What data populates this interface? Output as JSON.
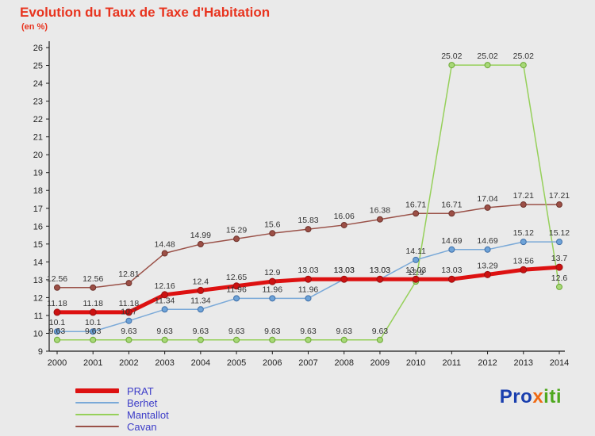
{
  "title": "Evolution du Taux de Taxe d'Habitation",
  "subtitle": "(en %)",
  "colors": {
    "title": "#e8341f",
    "legend_text": "#3c3cc8",
    "axis": "#1a1a1a",
    "value_label": "#333333",
    "background": "#eaeaea"
  },
  "logo": {
    "part1": "Pro",
    "part2": "x",
    "part3": "iti",
    "color1": "#1a3fae",
    "color2": "#f06a14",
    "color3": "#4ea81e"
  },
  "chart_data": {
    "type": "line",
    "x": [
      2000,
      2001,
      2002,
      2003,
      2004,
      2005,
      2006,
      2007,
      2008,
      2009,
      2010,
      2011,
      2012,
      2013,
      2014
    ],
    "ylim": [
      9,
      26
    ],
    "yticks": [
      9,
      10,
      11,
      12,
      13,
      14,
      15,
      16,
      17,
      18,
      19,
      20,
      21,
      22,
      23,
      24,
      25,
      26
    ],
    "grid": false,
    "legend_position": "bottom-left",
    "title": "Evolution du Taux de Taxe d'Habitation (en %)",
    "xlabel": "",
    "ylabel": "",
    "series": [
      {
        "name": "PRAT",
        "color": "#dd1111",
        "marker_fill": "#cc1111",
        "marker_stroke": "#991111",
        "width": 5,
        "marker_r": 4,
        "values": [
          11.18,
          11.18,
          11.18,
          12.16,
          12.4,
          12.65,
          12.9,
          13.03,
          13.03,
          13.03,
          13.03,
          13.03,
          13.29,
          13.56,
          13.7
        ]
      },
      {
        "name": "Berhet",
        "color": "#7aa9d8",
        "marker_fill": "#6ea3d8",
        "marker_stroke": "#3f6fa8",
        "width": 1.5,
        "marker_r": 3.5,
        "values": [
          10.1,
          10.1,
          10.7,
          11.34,
          11.34,
          11.96,
          11.96,
          11.96,
          13.03,
          13.03,
          14.11,
          14.69,
          14.69,
          15.12,
          15.12
        ]
      },
      {
        "name": "Mantallot",
        "color": "#96d05a",
        "marker_fill": "#a8d878",
        "marker_stroke": "#6aa832",
        "width": 1.5,
        "marker_r": 3.5,
        "values": [
          9.63,
          9.63,
          9.63,
          9.63,
          9.63,
          9.63,
          9.63,
          9.63,
          9.63,
          9.63,
          12.9,
          25.02,
          25.02,
          25.02,
          12.6
        ]
      },
      {
        "name": "Cavan",
        "color": "#9a5148",
        "marker_fill": "#9c4f46",
        "marker_stroke": "#6e332c",
        "width": 1.5,
        "marker_r": 3.5,
        "values": [
          12.56,
          12.56,
          12.81,
          14.48,
          14.99,
          15.29,
          15.6,
          15.83,
          16.06,
          16.38,
          16.71,
          16.71,
          17.04,
          17.21,
          17.21
        ]
      }
    ]
  }
}
